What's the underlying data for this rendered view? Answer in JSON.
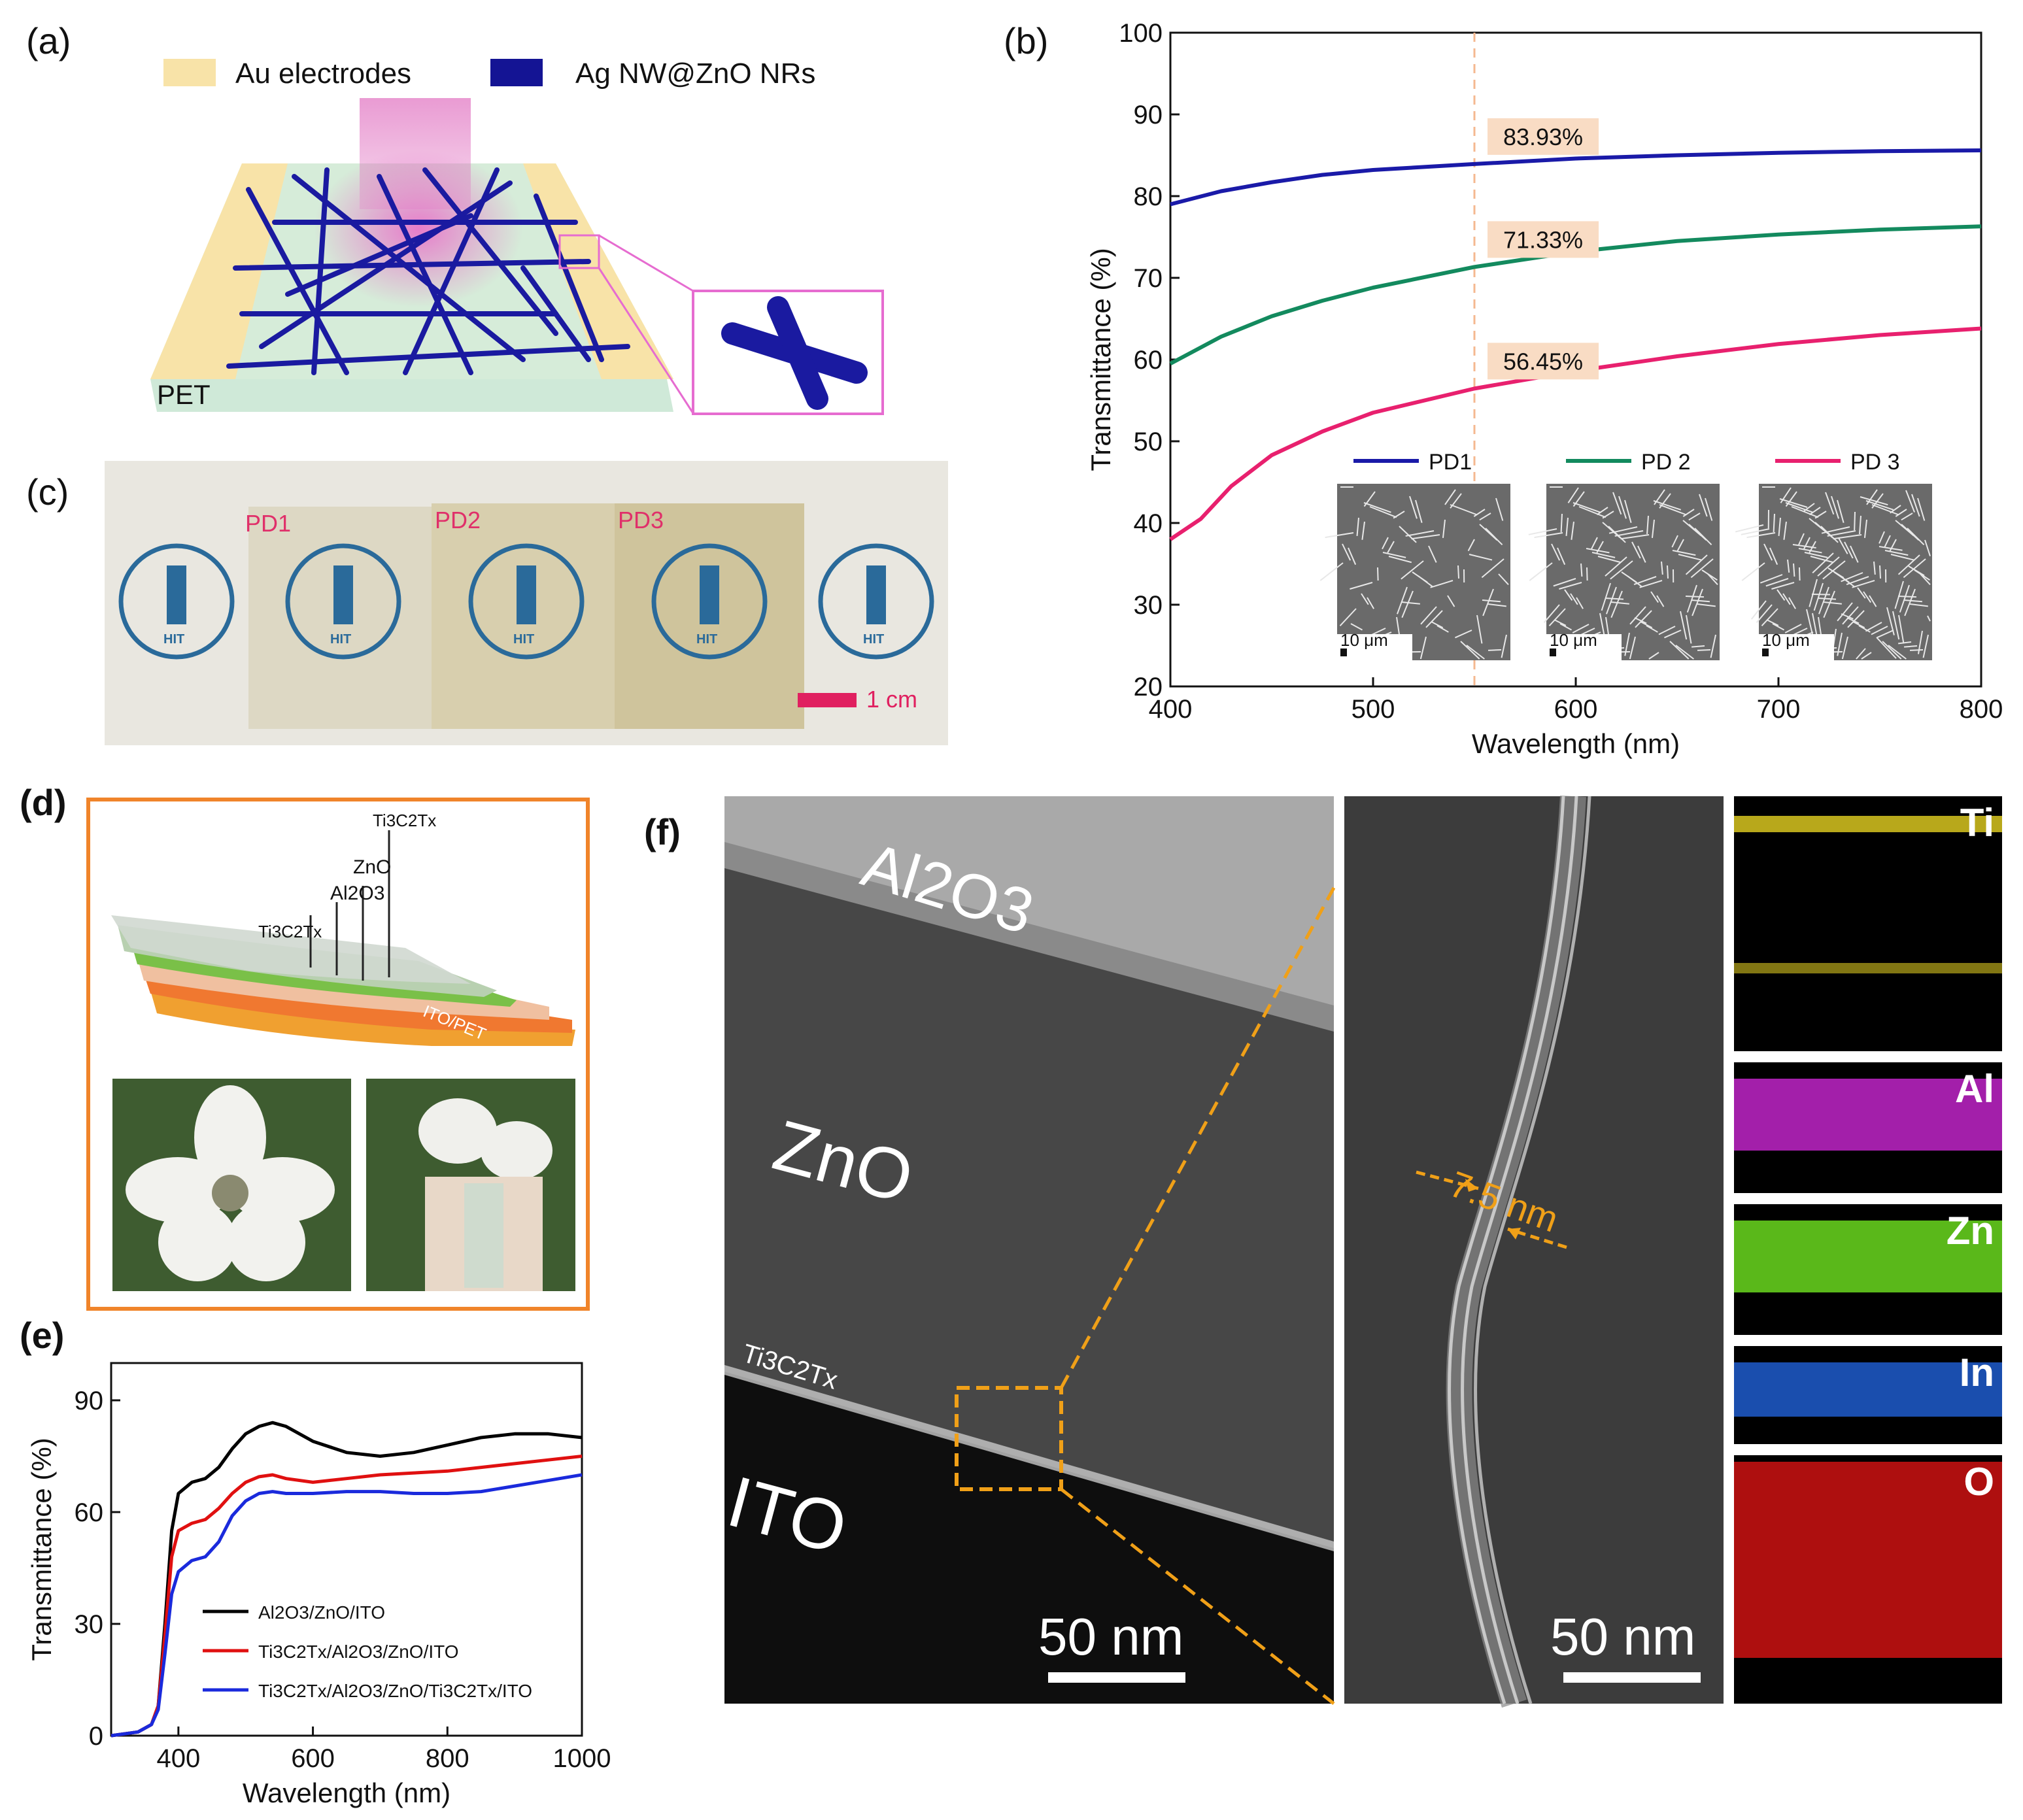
{
  "panels": {
    "a": {
      "label": "(a)",
      "legend_electrodes": "Au electrodes",
      "legend_nw": "Ag NW@ZnO NRs",
      "substrate": "PET"
    },
    "b": {
      "label": "(b)"
    },
    "c": {
      "label": "(c)",
      "pd1": "PD1",
      "pd2": "PD2",
      "pd3": "PD3",
      "scale": "1 cm",
      "logo_text": "HIT"
    },
    "d": {
      "label": "(d)",
      "layer_top": "Ti3C2Tx",
      "layer_zno": "ZnO",
      "layer_al2o3": "Al2O3",
      "layer_bottom": "Ti3C2Tx",
      "substrate": "ITO/PET"
    },
    "e": {
      "label": "(e)"
    },
    "f": {
      "label": "(f)",
      "al2o3": "Al2O3",
      "zno": "ZnO",
      "ti3c2tx": "Ti3C2Tx",
      "ito": "ITO",
      "scale1": "50 nm",
      "scale2": "50 nm",
      "thickness": "7.5 nm",
      "maps": [
        "Ti",
        "Al",
        "Zn",
        "In",
        "O"
      ],
      "map_colors": [
        "#d8c520",
        "#c024c8",
        "#6ad81e",
        "#1e5ccc",
        "#cc1212"
      ]
    }
  },
  "chart_data": [
    {
      "id": "b",
      "type": "line",
      "xlabel": "Wavelength (nm)",
      "ylabel": "Transmittance (%)",
      "xlim": [
        400,
        800
      ],
      "ylim": [
        20,
        100
      ],
      "xticks": [
        400,
        500,
        600,
        700,
        800
      ],
      "yticks": [
        20,
        30,
        40,
        50,
        60,
        70,
        80,
        90,
        100
      ],
      "marker_x": 550,
      "series": [
        {
          "name": "PD1",
          "color": "#1a1aa8",
          "x": [
            400,
            425,
            450,
            475,
            500,
            550,
            600,
            650,
            700,
            750,
            800
          ],
          "y": [
            79,
            80.6,
            81.7,
            82.6,
            83.2,
            83.93,
            84.6,
            85.0,
            85.3,
            85.5,
            85.6
          ]
        },
        {
          "name": "PD 2",
          "color": "#138a5e",
          "x": [
            400,
            425,
            450,
            475,
            500,
            550,
            600,
            650,
            700,
            750,
            800
          ],
          "y": [
            59.5,
            62.8,
            65.3,
            67.2,
            68.8,
            71.33,
            73.2,
            74.5,
            75.3,
            75.9,
            76.3
          ]
        },
        {
          "name": "PD 3",
          "color": "#e8206e",
          "x": [
            400,
            415,
            430,
            450,
            475,
            500,
            550,
            600,
            650,
            700,
            750,
            800
          ],
          "y": [
            38,
            40.5,
            44.5,
            48.3,
            51.2,
            53.5,
            56.45,
            58.6,
            60.4,
            61.9,
            63.0,
            63.8
          ]
        }
      ],
      "annotations": [
        {
          "text": "83.93%",
          "x": 550,
          "y": 83.93
        },
        {
          "text": "71.33%",
          "x": 550,
          "y": 71.33
        },
        {
          "text": "56.45%",
          "x": 550,
          "y": 56.45
        }
      ],
      "insets": [
        {
          "series": "PD1",
          "scale": "10 μm"
        },
        {
          "series": "PD 2",
          "scale": "10 μm"
        },
        {
          "series": "PD 3",
          "scale": "10 μm"
        }
      ]
    },
    {
      "id": "e",
      "type": "line",
      "xlabel": "Wavelength (nm)",
      "ylabel": "Transmittance (%)",
      "xlim": [
        300,
        1000
      ],
      "ylim": [
        0,
        100
      ],
      "xticks": [
        400,
        600,
        800,
        1000
      ],
      "yticks": [
        0,
        30,
        60,
        90
      ],
      "series": [
        {
          "name": "Al2O3/ZnO/ITO",
          "color": "#000000",
          "x": [
            300,
            340,
            360,
            370,
            380,
            390,
            400,
            420,
            440,
            460,
            480,
            500,
            520,
            540,
            560,
            580,
            600,
            650,
            700,
            750,
            800,
            850,
            900,
            950,
            1000
          ],
          "y": [
            0,
            1,
            3,
            8,
            30,
            55,
            65,
            68,
            69,
            72,
            77,
            81,
            83,
            84,
            83,
            81,
            79,
            76,
            75,
            76,
            78,
            80,
            81,
            81,
            80
          ]
        },
        {
          "name": "Ti3C2Tx/Al2O3/ZnO/ITO",
          "color": "#e01010",
          "x": [
            300,
            340,
            360,
            370,
            380,
            390,
            400,
            420,
            440,
            460,
            480,
            500,
            520,
            540,
            560,
            600,
            650,
            700,
            750,
            800,
            850,
            900,
            950,
            1000
          ],
          "y": [
            0,
            1,
            3,
            8,
            27,
            48,
            55,
            57,
            58,
            61,
            65,
            68,
            69.5,
            70,
            69,
            68,
            69,
            70,
            70.5,
            71,
            72,
            73,
            74,
            75
          ]
        },
        {
          "name": "Ti3C2Tx/Al2O3/ZnO/Ti3C2Tx/ITO",
          "color": "#1a2adc",
          "x": [
            300,
            340,
            360,
            370,
            380,
            390,
            400,
            420,
            440,
            460,
            480,
            500,
            520,
            540,
            560,
            600,
            650,
            700,
            750,
            800,
            850,
            900,
            950,
            1000
          ],
          "y": [
            0,
            1,
            3,
            7,
            22,
            38,
            44,
            47,
            48,
            52,
            59,
            63,
            65,
            65.5,
            65,
            65,
            65.5,
            65.5,
            65,
            65,
            65.5,
            67,
            68.5,
            70
          ]
        }
      ]
    }
  ]
}
